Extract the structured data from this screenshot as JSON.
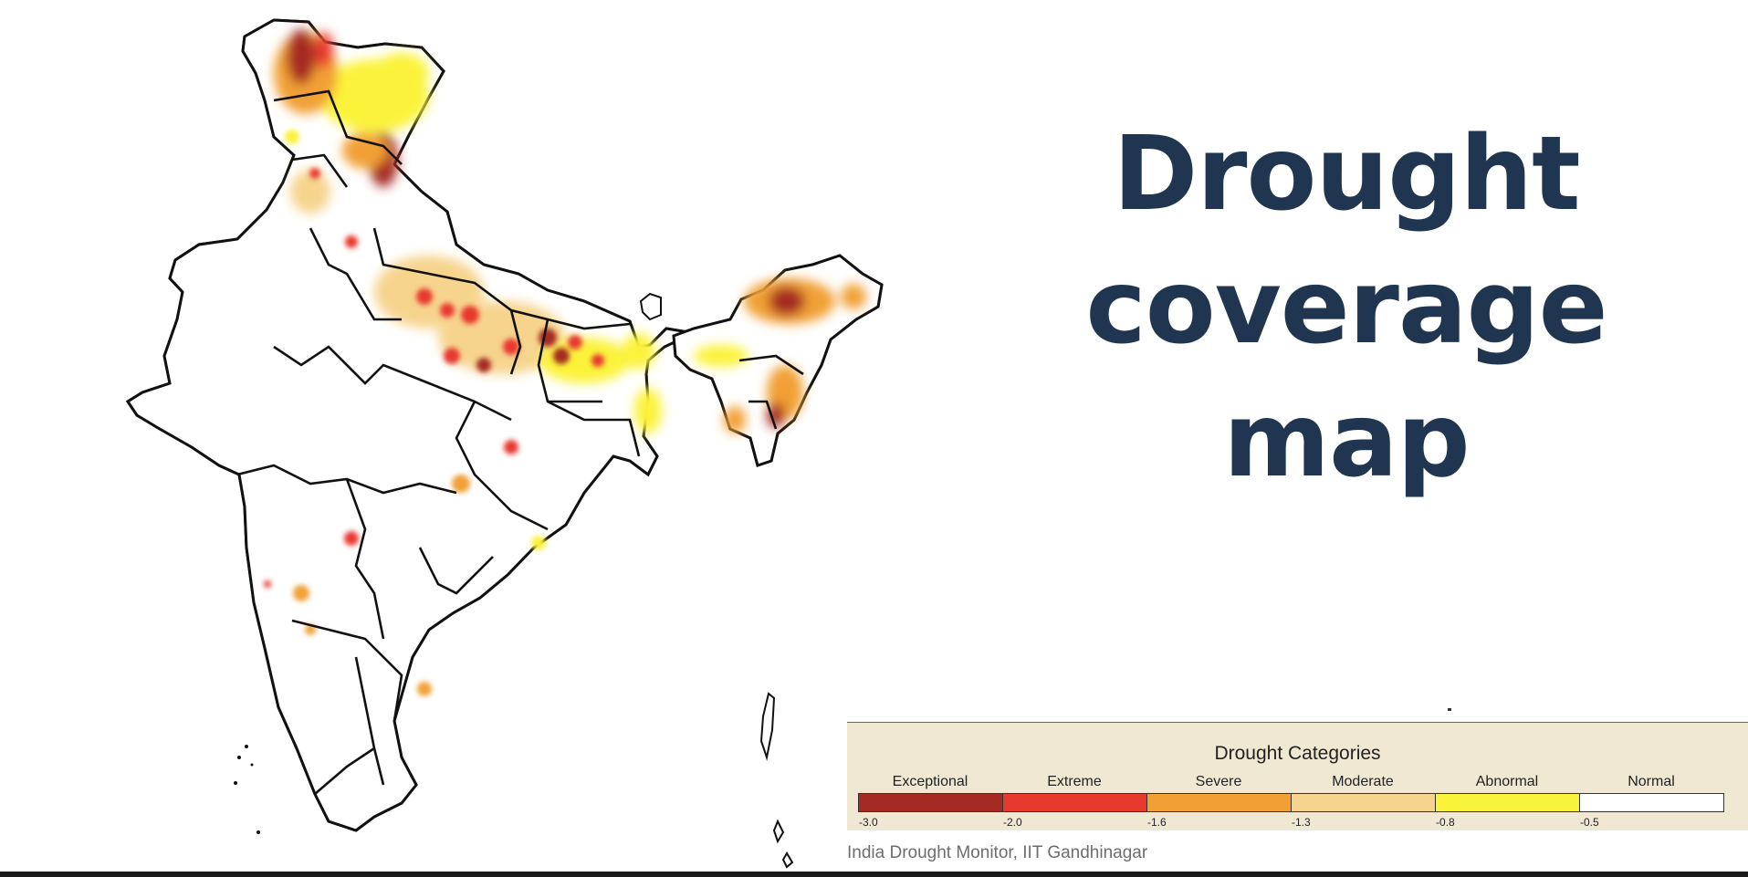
{
  "title_lines": [
    "Drought",
    "coverage",
    "map"
  ],
  "legend": {
    "title": "Drought Categories",
    "categories": [
      {
        "label": "Exceptional",
        "color": "#a52a22"
      },
      {
        "label": "Extreme",
        "color": "#e8392e"
      },
      {
        "label": "Severe",
        "color": "#f1a035"
      },
      {
        "label": "Moderate",
        "color": "#f6d48d"
      },
      {
        "label": "Abnormal",
        "color": "#fbf33a"
      },
      {
        "label": "Normal",
        "color": "#ffffff"
      }
    ],
    "ticks": [
      "-3.0",
      "-2.0",
      "-1.6",
      "-1.3",
      "-0.8",
      "-0.5"
    ]
  },
  "source": "India Drought Monitor, IIT Gandhinagar",
  "colors": {
    "title": "#1f3550",
    "legend_background": "#f1e8d3",
    "state_border": "#111111",
    "district_border": "#9a9a9a"
  }
}
